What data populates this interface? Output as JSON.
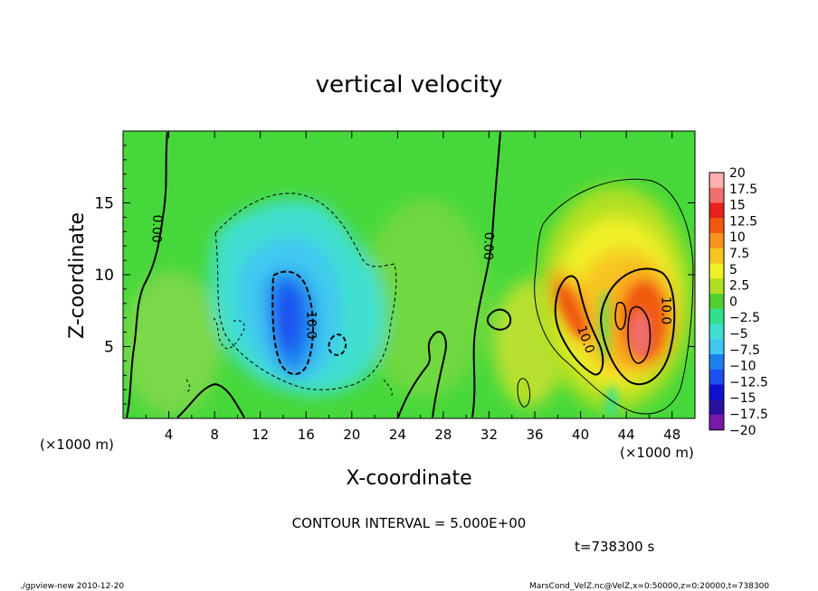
{
  "chart_data": {
    "type": "heatmap",
    "title": "vertical velocity",
    "xlabel": "X-coordinate",
    "ylabel": "Z-coordinate",
    "x_unit_label_left": "(×1000 m)",
    "x_unit_label_right": "(×1000 m)",
    "xlim": [
      0,
      50
    ],
    "ylim": [
      0,
      20
    ],
    "x_ticks": [
      4,
      8,
      12,
      16,
      20,
      24,
      28,
      32,
      36,
      40,
      44,
      48
    ],
    "y_ticks": [
      5,
      10,
      15
    ],
    "colorbar": {
      "labels": [
        "20",
        "17.5",
        "15",
        "12.5",
        "10",
        "7.5",
        "5",
        "2.5",
        "0",
        "−2.5",
        "−5",
        "−7.5",
        "−10",
        "−12.5",
        "−15",
        "−17.5",
        "−20"
      ],
      "colors": [
        "#ffb0b0",
        "#f07070",
        "#e82020",
        "#f05a10",
        "#f7941d",
        "#f7c520",
        "#f0f028",
        "#b0e020",
        "#50d030",
        "#30e090",
        "#40e0d0",
        "#40c8f0",
        "#1e80f0",
        "#1e4ff0",
        "#1010d0",
        "#2a10a0",
        "#7a1aa8"
      ]
    },
    "features": [
      {
        "kind": "downdraft",
        "center_x": 16,
        "center_z": 7,
        "min_value": -12.5
      },
      {
        "kind": "updraft",
        "center_x": 46,
        "center_z": 6,
        "max_value": 17.5
      },
      {
        "kind": "updraft",
        "center_x": 40,
        "center_z": 8,
        "max_value": 12.5
      }
    ],
    "contour_labels": [
      {
        "text": "0.00",
        "x": 3.0,
        "z": 13.2,
        "angle": 92
      },
      {
        "text": "0.00",
        "x": 32.0,
        "z": 12.0,
        "angle": 92
      },
      {
        "text": "10.0",
        "x": 16.5,
        "z": 6.5,
        "angle": 90
      },
      {
        "text": "10.0",
        "x": 40.5,
        "z": 5.5,
        "angle": 70
      },
      {
        "text": "10.0",
        "x": 47.5,
        "z": 7.5,
        "angle": 90
      }
    ],
    "contour_interval_text": "CONTOUR INTERVAL = 5.000E+00",
    "time_text": "t=738300 s"
  },
  "footer": {
    "left": "./gpview-new  2010-12-20",
    "right": "MarsCond_VelZ.nc@VelZ,x=0:50000,z=0:20000,t=738300"
  }
}
